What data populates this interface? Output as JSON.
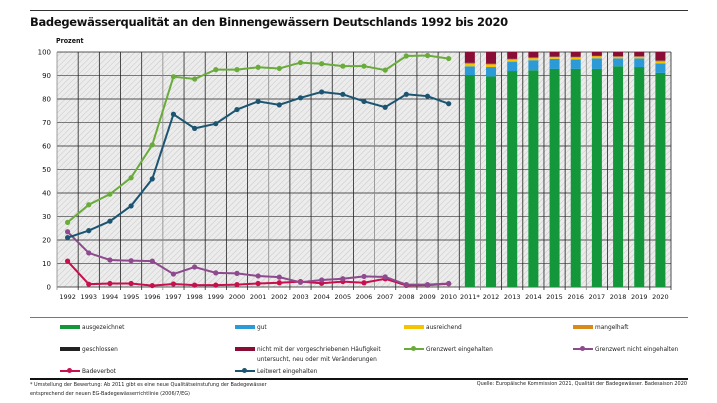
{
  "chart_data": {
    "type": "line+stacked-bar",
    "title": "Badegewässerqualität an den Binnengewässern Deutschlands 1992 bis 2020",
    "ylabel": "Prozent",
    "ylim": [
      0,
      100
    ],
    "yticks": [
      0,
      10,
      20,
      30,
      40,
      50,
      60,
      70,
      80,
      90,
      100
    ],
    "grid": true,
    "categories": [
      "1992",
      "1993",
      "1994",
      "1995",
      "1996",
      "1997",
      "1998",
      "1999",
      "2000",
      "2001",
      "2002",
      "2003",
      "2004",
      "2005",
      "2006",
      "2007",
      "2008",
      "2009",
      "2010",
      "2011*",
      "2012",
      "2013",
      "2014",
      "2015",
      "2016",
      "2017",
      "2018",
      "2019",
      "2020"
    ],
    "line_series": [
      {
        "name": "Grenzwert eingehalten",
        "color": "#6aac3c",
        "values": [
          27.5,
          35,
          39.5,
          46.5,
          60.5,
          89.5,
          88.5,
          92.5,
          92.5,
          93.5,
          93,
          95.5,
          95,
          94,
          94,
          92.3,
          98.3,
          98.5,
          97.2
        ]
      },
      {
        "name": "Leitwert eingehalten",
        "color": "#1b5571",
        "values": [
          21,
          24,
          28,
          34.5,
          46,
          73.5,
          67.5,
          69.5,
          75.5,
          79,
          77.5,
          80.5,
          83,
          82,
          79,
          76.5,
          82,
          81.2,
          78
        ]
      },
      {
        "name": "Grenzwert nicht eingehalten",
        "color": "#8e4a8e",
        "values": [
          23.5,
          14.5,
          11.5,
          11.2,
          11,
          5.5,
          8.5,
          6,
          5.8,
          4.7,
          4.2,
          2,
          3,
          3.5,
          4.5,
          4.3,
          1,
          1,
          1.5
        ]
      },
      {
        "name": "Badeverbot",
        "color": "#c8104e",
        "values": [
          11,
          1.2,
          1.5,
          1.5,
          0.6,
          1.3,
          0.8,
          0.8,
          1,
          1.5,
          1.8,
          2.3,
          1.6,
          2.3,
          1.8,
          3.5,
          0.7,
          0.8,
          1.4
        ]
      }
    ],
    "bar_series": [
      {
        "name": "ausgezeichnet",
        "color": "#13973a",
        "values": [
          90.2,
          89.6,
          91.9,
          92.2,
          92.8,
          92.8,
          92.8,
          93.9,
          93.6,
          91.1
        ]
      },
      {
        "name": "gut",
        "color": "#2b9ad6",
        "values": [
          3.7,
          4,
          4,
          4.3,
          4.3,
          4,
          4.5,
          3.4,
          3.7,
          4
        ]
      },
      {
        "name": "ausreichend",
        "color": "#f5c400",
        "values": [
          1,
          1,
          0.8,
          0.8,
          0.7,
          0.8,
          0.8,
          0.6,
          0.6,
          0.8
        ]
      },
      {
        "name": "mangelhaft",
        "color": "#d88a1a",
        "values": [
          0.4,
          0.4,
          0.3,
          0.3,
          0.2,
          0.3,
          0.2,
          0.2,
          0.2,
          0.4
        ]
      },
      {
        "name": "geschlossen",
        "color": "#222222",
        "values": [
          0.1,
          0.1,
          0.1,
          0.1,
          0.1,
          0.1,
          0.1,
          0.1,
          0.1,
          0.1
        ]
      },
      {
        "name": "nicht mit der vorgeschriebenen Häufigkeit untersucht, neu oder mit Veränderungen",
        "color": "#8a0d35",
        "values": [
          4.6,
          4.9,
          2.9,
          2.3,
          1.9,
          2,
          1.6,
          1.8,
          1.8,
          3.6
        ]
      }
    ]
  },
  "legend": [
    {
      "label": "ausgezeichnet",
      "color": "#13973a",
      "kind": "bar"
    },
    {
      "label": "gut",
      "color": "#2b9ad6",
      "kind": "bar"
    },
    {
      "label": "ausreichend",
      "color": "#f5c400",
      "kind": "bar"
    },
    {
      "label": "mangelhaft",
      "color": "#d88a1a",
      "kind": "bar"
    },
    {
      "label": "geschlossen",
      "color": "#222222",
      "kind": "bar"
    },
    {
      "label": "nicht mit der vorgeschriebenen Häufigkeit untersucht, neu oder mit Veränderungen",
      "color": "#8a0d35",
      "kind": "bar"
    },
    {
      "label": "Grenzwert eingehalten",
      "color": "#6aac3c",
      "kind": "line"
    },
    {
      "label": "Grenzwert nicht eingehalten",
      "color": "#8e4a8e",
      "kind": "line"
    },
    {
      "label": "Badeverbot",
      "color": "#c8104e",
      "kind": "line"
    },
    {
      "label": "Leitwert eingehalten",
      "color": "#1b5571",
      "kind": "line"
    }
  ],
  "footnote": "* Umstellung der Bewertung: Ab 2011 gibt es eine neue Qualitätseinstufung der Badegewässer entsprechend der neuen EG-Badegewässerrichtlinie (2006/7/EG)",
  "source": "Quelle: Europäische Kommission 2021, Qualität der Badegewässer. Badesaison 2020"
}
